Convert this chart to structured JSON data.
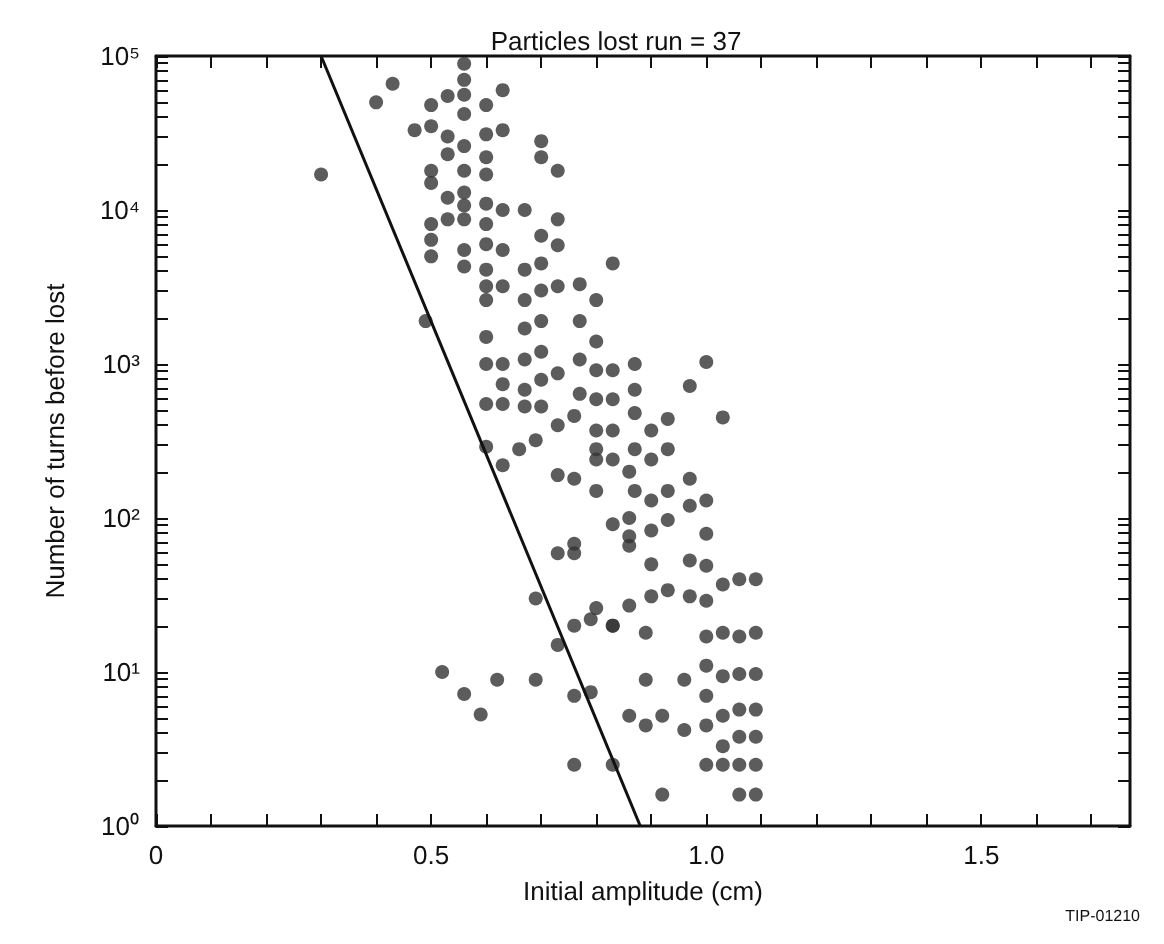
{
  "chart_data": {
    "type": "scatter",
    "title": "Particles lost run = 37",
    "xlabel": "Initial amplitude (cm)",
    "ylabel": "Number of turns before lost",
    "annotations": [
      "TIP-01210"
    ],
    "log": "y",
    "marker": "circle",
    "line_style": "solid",
    "grid": false,
    "xlim": [
      0,
      1.77
    ],
    "xticks": [
      0,
      {
        "value": 0.1,
        "label": null
      },
      {
        "value": 0.2,
        "label": null
      },
      {
        "value": 0.3,
        "label": null
      },
      {
        "value": 0.4,
        "label": null
      },
      {
        "value": 0.5,
        "label": "0.5"
      },
      {
        "value": 0.6,
        "label": null
      },
      {
        "value": 0.7,
        "label": null
      },
      {
        "value": 0.8,
        "label": null
      },
      {
        "value": 0.9,
        "label": null
      },
      {
        "value": 1.0,
        "label": "1.0"
      },
      {
        "value": 1.1,
        "label": null
      },
      {
        "value": 1.2,
        "label": null
      },
      {
        "value": 1.3,
        "label": null
      },
      {
        "value": 1.4,
        "label": null
      },
      {
        "value": 1.5,
        "label": "1.5"
      },
      {
        "value": 1.6,
        "label": null
      },
      {
        "value": 1.7,
        "label": null
      }
    ],
    "ylim": [
      1,
      100000
    ],
    "yticks": [
      {
        "value": 1,
        "label": "10⁰"
      },
      {
        "value": 2,
        "label": null
      },
      {
        "value": 3,
        "label": null
      },
      {
        "value": 4,
        "label": null
      },
      {
        "value": 5,
        "label": null
      },
      {
        "value": 6,
        "label": null
      },
      {
        "value": 7,
        "label": null
      },
      {
        "value": 8,
        "label": null
      },
      {
        "value": 9,
        "label": null
      },
      {
        "value": 10,
        "label": "10¹"
      },
      {
        "value": 20,
        "label": null
      },
      {
        "value": 30,
        "label": null
      },
      {
        "value": 40,
        "label": null
      },
      {
        "value": 50,
        "label": null
      },
      {
        "value": 60,
        "label": null
      },
      {
        "value": 70,
        "label": null
      },
      {
        "value": 80,
        "label": null
      },
      {
        "value": 90,
        "label": null
      },
      {
        "value": 100,
        "label": "10²"
      },
      {
        "value": 200,
        "label": null
      },
      {
        "value": 300,
        "label": null
      },
      {
        "value": 400,
        "label": null
      },
      {
        "value": 500,
        "label": null
      },
      {
        "value": 600,
        "label": null
      },
      {
        "value": 700,
        "label": null
      },
      {
        "value": 800,
        "label": null
      },
      {
        "value": 900,
        "label": null
      },
      {
        "value": 1000,
        "label": "10³"
      },
      {
        "value": 2000,
        "label": null
      },
      {
        "value": 3000,
        "label": null
      },
      {
        "value": 4000,
        "label": null
      },
      {
        "value": 5000,
        "label": null
      },
      {
        "value": 6000,
        "label": null
      },
      {
        "value": 7000,
        "label": null
      },
      {
        "value": 8000,
        "label": null
      },
      {
        "value": 9000,
        "label": null
      },
      {
        "value": 10000,
        "label": "10⁴"
      },
      {
        "value": 20000,
        "label": null
      },
      {
        "value": 30000,
        "label": null
      },
      {
        "value": 40000,
        "label": null
      },
      {
        "value": 50000,
        "label": null
      },
      {
        "value": 60000,
        "label": null
      },
      {
        "value": 70000,
        "label": null
      },
      {
        "value": 80000,
        "label": null
      },
      {
        "value": 90000,
        "label": null
      },
      {
        "value": 100000,
        "label": "10⁵"
      }
    ],
    "series": [
      {
        "color": "#333333",
        "x": [
          0.3,
          0.4,
          0.43,
          0.47,
          0.5,
          0.5,
          0.5,
          0.5,
          0.5,
          0.5,
          0.5,
          0.49,
          0.53,
          0.53,
          0.53,
          0.53,
          0.53,
          0.56,
          0.56,
          0.56,
          0.56,
          0.56,
          0.56,
          0.56,
          0.56,
          0.56,
          0.56,
          0.56,
          0.6,
          0.6,
          0.6,
          0.6,
          0.6,
          0.6,
          0.6,
          0.6,
          0.6,
          0.6,
          0.6,
          0.6,
          0.6,
          0.63,
          0.63,
          0.63,
          0.63,
          0.63,
          0.63,
          0.63,
          0.63,
          0.67,
          0.67,
          0.67,
          0.67,
          0.67,
          0.67,
          0.67,
          0.7,
          0.7,
          0.7,
          0.7,
          0.7,
          0.7,
          0.7,
          0.7,
          0.7,
          0.73,
          0.73,
          0.73,
          0.73,
          0.73,
          0.73,
          0.77,
          0.77,
          0.77,
          0.77,
          0.8,
          0.8,
          0.8,
          0.8,
          0.8,
          0.8,
          0.83,
          0.83,
          0.83,
          0.83,
          0.83,
          0.87,
          0.87,
          0.87,
          0.87,
          0.87,
          0.9,
          0.9,
          0.9,
          0.9,
          0.93,
          0.93,
          0.93,
          0.93,
          0.97,
          0.97,
          0.97,
          1.0,
          1.03,
          1.0,
          1.0,
          1.0,
          1.0,
          0.97,
          0.97,
          0.93,
          0.9,
          0.9,
          1.03,
          1.06,
          1.09,
          1.03,
          1.06,
          1.09,
          1.06,
          1.09,
          1.0,
          1.0,
          1.0,
          1.0,
          1.03,
          1.03,
          1.03,
          1.06,
          1.06,
          1.09,
          1.09,
          1.0,
          1.03,
          1.06,
          1.09,
          1.06,
          1.09,
          0.92,
          0.96,
          0.96,
          0.92,
          0.89,
          0.89,
          0.89,
          0.86,
          0.86,
          0.83,
          0.83,
          0.79,
          0.79,
          0.76,
          0.76,
          0.76,
          0.86,
          0.86,
          0.52,
          0.56,
          0.59,
          0.62,
          0.69,
          0.6,
          0.63,
          0.66,
          0.69,
          0.69,
          0.73,
          0.73,
          0.76,
          0.76,
          0.8,
          0.83,
          0.73,
          0.76,
          0.76,
          0.8,
          0.8,
          0.83,
          0.86,
          0.86
        ],
        "values": [
          17000,
          50000,
          66000,
          33000,
          48000,
          35000,
          18000,
          15000,
          8100,
          6400,
          5000,
          1900,
          55000,
          30000,
          23000,
          12000,
          8700,
          89000,
          70000,
          56000,
          42000,
          26000,
          18000,
          13000,
          10700,
          8700,
          5500,
          4300,
          48000,
          31000,
          22000,
          17000,
          11000,
          8100,
          6000,
          4100,
          3200,
          2600,
          1500,
          1000,
          550,
          60000,
          33000,
          10000,
          5500,
          3200,
          1000,
          740,
          550,
          10000,
          4100,
          2600,
          1700,
          1070,
          680,
          530,
          28000,
          22000,
          6800,
          4500,
          3000,
          1900,
          1200,
          790,
          530,
          18000,
          8700,
          5900,
          3200,
          870,
          400,
          3300,
          1900,
          1070,
          640,
          2600,
          1400,
          910,
          590,
          370,
          240,
          4500,
          910,
          590,
          370,
          240,
          1000,
          680,
          480,
          280,
          150,
          370,
          240,
          130,
          83,
          440,
          280,
          150,
          97,
          720,
          180,
          120,
          1030,
          450,
          130,
          79,
          49,
          29,
          53,
          31,
          34,
          50,
          31,
          37,
          40,
          40,
          18,
          17,
          18,
          9.7,
          9.7,
          17,
          11,
          7,
          4.5,
          9.4,
          5.2,
          3.3,
          5.7,
          3.8,
          5.7,
          3.8,
          2.5,
          2.5,
          2.5,
          2.5,
          1.6,
          1.6,
          1.6,
          8.9,
          4.2,
          5.2,
          18,
          8.9,
          4.5,
          27,
          5.2,
          20,
          2.5,
          22,
          7.4,
          7,
          2.5,
          59,
          66,
          100,
          10,
          7.2,
          5.3,
          8.9,
          8.9,
          290,
          220,
          280,
          320,
          30,
          15,
          59,
          68,
          20,
          26,
          20,
          190,
          460,
          180,
          280,
          150,
          91,
          200,
          76
        ]
      },
      {
        "type": "line",
        "marker": "none",
        "color": "#111111",
        "x": [
          0.3,
          0.88
        ],
        "values": [
          100000,
          1
        ]
      }
    ]
  }
}
